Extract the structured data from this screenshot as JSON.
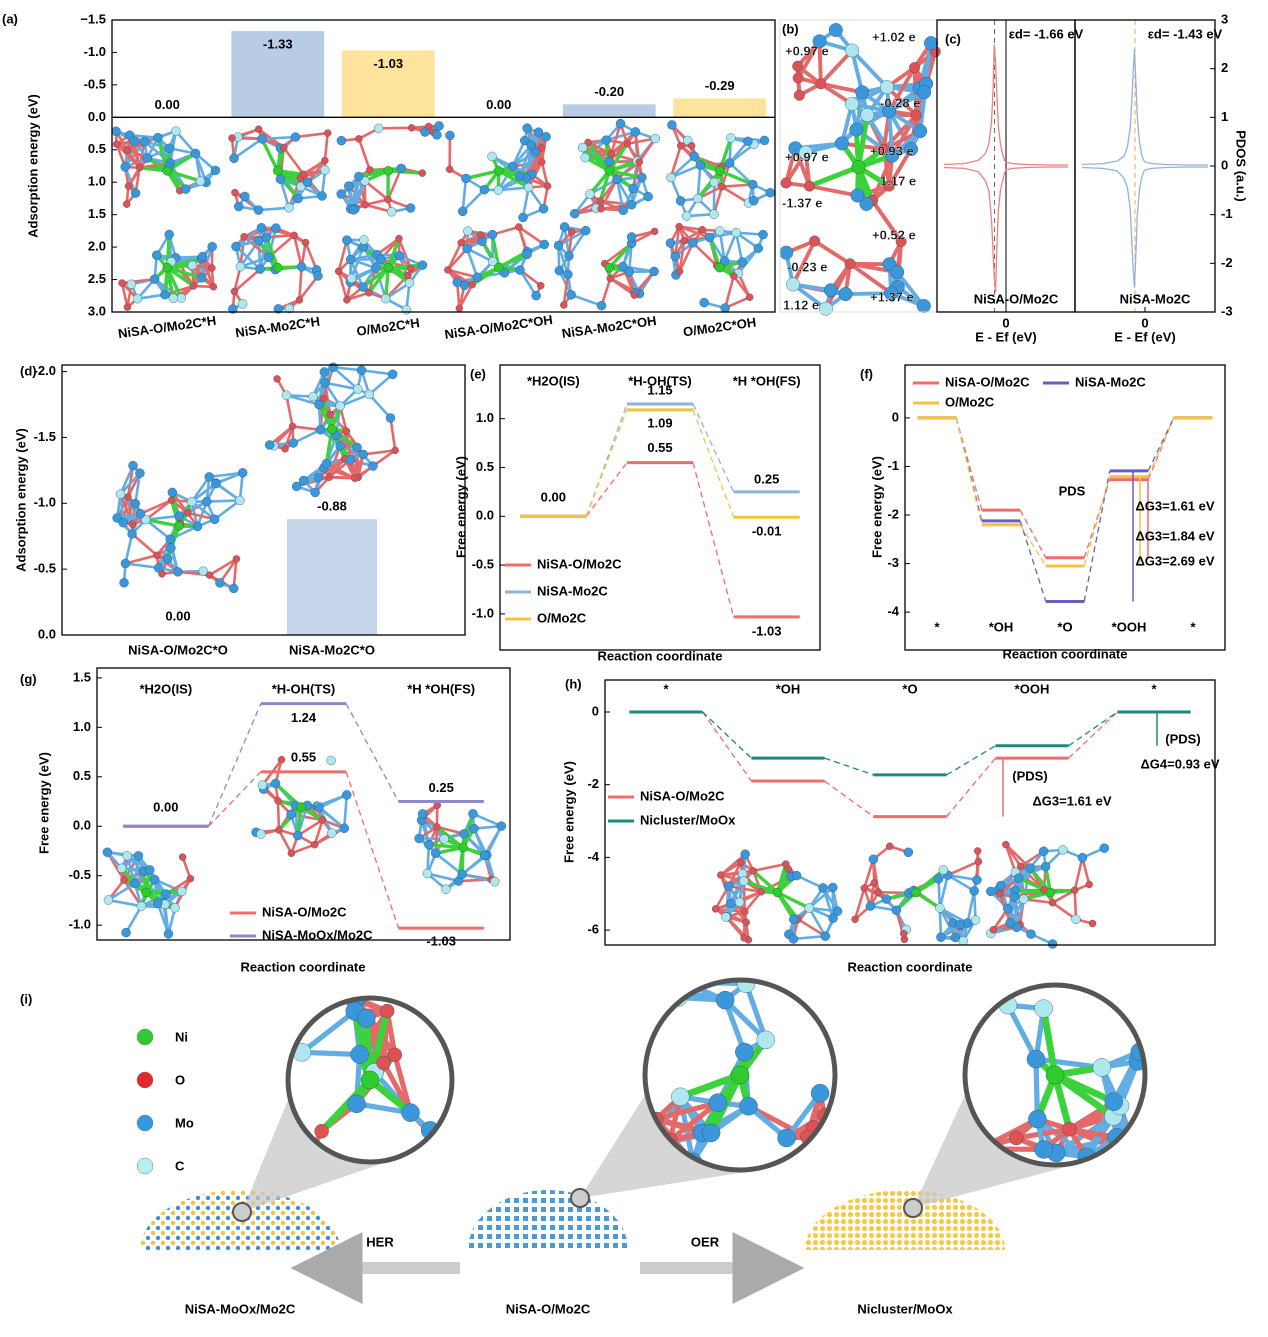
{
  "chart_data": [
    {
      "panel": "(a)",
      "type": "bar",
      "y_label": "Adsorption energy (eV)",
      "categories": [
        "NiSA-O/Mo2C*H",
        "NiSA-Mo2C*H",
        "O/Mo2C*H",
        "NiSA-O/Mo2C*OH",
        "NiSA-Mo2C*OH",
        "O/Mo2C*OH"
      ],
      "values": [
        0,
        -1.33,
        -1.03,
        0,
        -0.2,
        -0.29
      ],
      "value_labels": [
        "0.00",
        "-1.33",
        "-1.03",
        "0.00",
        "-0.20",
        "-0.29"
      ],
      "colors": [
        "#f26b6b",
        "#b8cce6",
        "#fde39b",
        "#f26b6b",
        "#b8cce6",
        "#fde39b"
      ],
      "label_colors": [
        "#f06060",
        "#ffffff",
        "#f0b400",
        "#f06060",
        "#6f9ccf",
        "#f0b400"
      ],
      "ylim": [
        3.0,
        -1.5
      ],
      "yticks": [
        {
          "value": -1.5,
          "label": "−1.5"
        },
        {
          "value": -1.0,
          "label": "-1.0"
        },
        -0.5,
        {
          "value": 0,
          "label": "0.0"
        },
        0.5,
        {
          "value": 1.0,
          "label": "1.0"
        },
        1.5,
        {
          "value": 2.0,
          "label": "2.0"
        },
        2.5,
        {
          "value": 3.0,
          "label": "3.0"
        }
      ]
    },
    {
      "panel": "(c)",
      "type": "line",
      "x_label": "E - Ef (eV)",
      "annotation": "εd= -1.66 eV",
      "d_band_center": -1.66,
      "zero_line": true,
      "x": [
        -9,
        -6,
        -4,
        -3,
        -2.5,
        -2.1,
        -1.9,
        -1.7,
        -1.5,
        -1.3,
        -1.1,
        -0.8,
        -0.5,
        -0.2,
        0,
        1,
        3,
        6,
        9
      ],
      "series": [
        {
          "name": "NiSA-O/Mo2C",
          "color": "#f08080",
          "values": [
            0.03,
            0.05,
            0.12,
            0.25,
            0.45,
            0.9,
            1.5,
            2.5,
            2.1,
            1.4,
            0.8,
            0.45,
            0.25,
            0.12,
            0.08,
            0.05,
            0.03,
            0.02,
            0.02
          ]
        },
        {
          "color": "#f08080",
          "values": [
            -0.03,
            -0.05,
            -0.12,
            -0.3,
            -0.5,
            -1.1,
            -1.7,
            -2.3,
            -2.6,
            -1.6,
            -0.9,
            -0.5,
            -0.3,
            -0.15,
            -0.08,
            -0.05,
            -0.03,
            -0.02,
            -0.02
          ]
        }
      ],
      "xlim": [
        -10,
        10
      ],
      "xticks": [
        0
      ],
      "ylim": [
        -3,
        3
      ]
    },
    {
      "type": "line",
      "x_label": "E - Ef (eV)",
      "y_label": "PDOS (a.u.)",
      "annotation": "εd= -1.43 eV",
      "d_band_center": -1.43,
      "x": [
        -9,
        -6,
        -4,
        -3,
        -2.5,
        -2.1,
        -1.9,
        -1.7,
        -1.5,
        -1.3,
        -1.1,
        -0.8,
        -0.5,
        -0.2,
        0,
        1,
        3,
        6,
        9
      ],
      "series": [
        {
          "name": "NiSA-Mo2C",
          "color": "#8fb3dc",
          "values": [
            0.03,
            0.05,
            0.1,
            0.2,
            0.4,
            0.8,
            1.3,
            1.9,
            2.4,
            1.7,
            1.0,
            0.5,
            0.25,
            0.12,
            0.08,
            0.05,
            0.03,
            0.02,
            0.02
          ]
        },
        {
          "color": "#8fb3dc",
          "values": [
            -0.03,
            -0.05,
            -0.1,
            -0.25,
            -0.45,
            -0.9,
            -1.5,
            -2.1,
            -2.5,
            -1.8,
            -1.0,
            -0.5,
            -0.25,
            -0.12,
            -0.08,
            -0.05,
            -0.03,
            -0.02,
            -0.02
          ]
        }
      ],
      "xlim": [
        -10,
        10
      ],
      "xticks": [
        0
      ],
      "ylim": [
        -3,
        3
      ],
      "yticks": [
        -3,
        -2,
        -1,
        0,
        1,
        2,
        3
      ]
    },
    {
      "panel": "(d)",
      "type": "bar",
      "y_label": "Adsorption energy (eV)",
      "categories": [
        "NiSA-O/Mo2C*O",
        "NiSA-Mo2C*O"
      ],
      "values": [
        0,
        -0.88
      ],
      "value_labels": [
        "0.00",
        "-0.88"
      ],
      "colors": [
        "#f26b6b",
        "#c5d5ea"
      ],
      "label_colors": [
        "#f06060",
        "#6f9ccf"
      ],
      "ylim": [
        0,
        -2.05
      ],
      "yticks": [
        {
          "value": -2.0,
          "label": "-2.0"
        },
        -1.5,
        {
          "value": -1.0,
          "label": "-1.0"
        },
        -0.5,
        {
          "value": 0,
          "label": "0.0"
        }
      ]
    },
    {
      "panel": "(e)",
      "type": "energy_profile",
      "x_label": "Reaction coordinate",
      "y_label": "Free energy (eV)",
      "categories": [
        "*H2O(IS)",
        "*H-OH(TS)",
        "*H *OH(FS)"
      ],
      "series": [
        {
          "name": "NiSA-O/Mo2C",
          "color": "#f26b6b",
          "values": [
            0,
            0.55,
            -1.03
          ],
          "value_labels": [
            "0.00",
            "0.55",
            "-1.03"
          ]
        },
        {
          "name": "NiSA-Mo2C",
          "color": "#8fb3dc",
          "values": [
            0,
            1.15,
            0.25
          ],
          "value_labels": [
            null,
            "1.15",
            "0.25"
          ]
        },
        {
          "name": "O/Mo2C",
          "color": "#f7c23e",
          "values": [
            0,
            1.09,
            -0.01
          ],
          "value_labels": [
            null,
            "1.09",
            "-0.01"
          ]
        }
      ],
      "ylim": [
        -1.37,
        1.55
      ],
      "yticks": [
        {
          "value": -1.0,
          "label": "-1.0"
        },
        -0.5,
        {
          "value": 0,
          "label": "0.0"
        },
        0.5,
        {
          "value": 1.0,
          "label": "1.0"
        }
      ]
    },
    {
      "panel": "(f)",
      "type": "energy_profile",
      "x_label": "Reaction coordinate",
      "y_label": "Free energy (eV)",
      "categories": [
        "*",
        "*OH",
        "*O",
        "*OOH",
        "*"
      ],
      "series": [
        {
          "name": "NiSA-O/Mo2C",
          "color": "#f26b6b",
          "values": [
            0,
            -1.9,
            -2.88,
            -1.27,
            0
          ]
        },
        {
          "name": "NiSA-Mo2C",
          "color": "#6a5fc1",
          "values": [
            0,
            -2.12,
            -3.78,
            -1.09,
            0
          ]
        },
        {
          "name": "O/Mo2C",
          "color": "#f7c23e",
          "values": [
            0,
            -2.2,
            -3.05,
            -1.21,
            0
          ]
        }
      ],
      "annotations": [
        "PDS",
        "ΔG3=1.61 eV",
        "ΔG3=1.84 eV",
        "ΔG3=2.69 eV"
      ],
      "ylim": [
        -4.78,
        1.09
      ],
      "yticks": [
        -4,
        -3,
        -2,
        -1,
        0
      ]
    },
    {
      "panel": "(g)",
      "type": "energy_profile",
      "x_label": "Reaction coordinate",
      "y_label": "Free energy (eV)",
      "categories": [
        "*H2O(IS)",
        "*H-OH(TS)",
        "*H *OH(FS)"
      ],
      "series": [
        {
          "name": "NiSA-O/Mo2C",
          "color": "#f26b6b",
          "values": [
            0,
            0.55,
            -1.03
          ],
          "value_labels": [
            "0.00",
            "0.55",
            "-1.03"
          ]
        },
        {
          "name": "NiSA-MoOx/Mo2C",
          "color": "#8f86d0",
          "values": [
            0,
            1.24,
            0.25
          ],
          "value_labels": [
            null,
            "1.24",
            "0.25"
          ]
        }
      ],
      "ylim": [
        -1.15,
        1.6
      ],
      "yticks": [
        {
          "value": -1.0,
          "label": "-1.0"
        },
        -0.5,
        {
          "value": 0,
          "label": "0.0"
        },
        0.5,
        {
          "value": 1.0,
          "label": "1.0"
        },
        1.5
      ]
    },
    {
      "panel": "(h)",
      "type": "energy_profile",
      "x_label": "Reaction coordinate",
      "y_label": "Free energy (eV)",
      "categories": [
        "*",
        "*OH",
        "*O",
        "*OOH",
        "*"
      ],
      "series": [
        {
          "name": "NiSA-O/Mo2C",
          "color": "#f26b6b",
          "values": [
            0,
            -1.9,
            -2.88,
            -1.27,
            0
          ]
        },
        {
          "name": "Nicluster/MoOx",
          "color": "#1a8a80",
          "values": [
            0,
            -1.27,
            -1.73,
            -0.93,
            0
          ]
        }
      ],
      "annotations": [
        "(PDS)",
        "ΔG3=1.61 eV",
        "(PDS)",
        "ΔG4=0.93 eV"
      ],
      "ylim": [
        -6.41,
        0.88
      ],
      "yticks": [
        -6,
        -4,
        -2,
        0
      ]
    }
  ],
  "panel_b": {
    "label": "(b)",
    "charges": [
      "+0.97 e",
      "+1.02 e",
      "-0.28 e",
      "+0.97 e",
      "+0.93 e",
      "-1.37 e",
      "1.17 e",
      "+0.52 e",
      "-0.23 e",
      "+1.37 e",
      "1.12 e"
    ]
  },
  "schematic": {
    "label": "(i)",
    "legend": [
      "Ni",
      "O",
      "Mo",
      "C"
    ],
    "processes": [
      "HER",
      "OER"
    ],
    "materials": [
      "NiSA-MoOx/Mo2C",
      "NiSA-O/Mo2C",
      "Nicluster/MoOx"
    ]
  }
}
